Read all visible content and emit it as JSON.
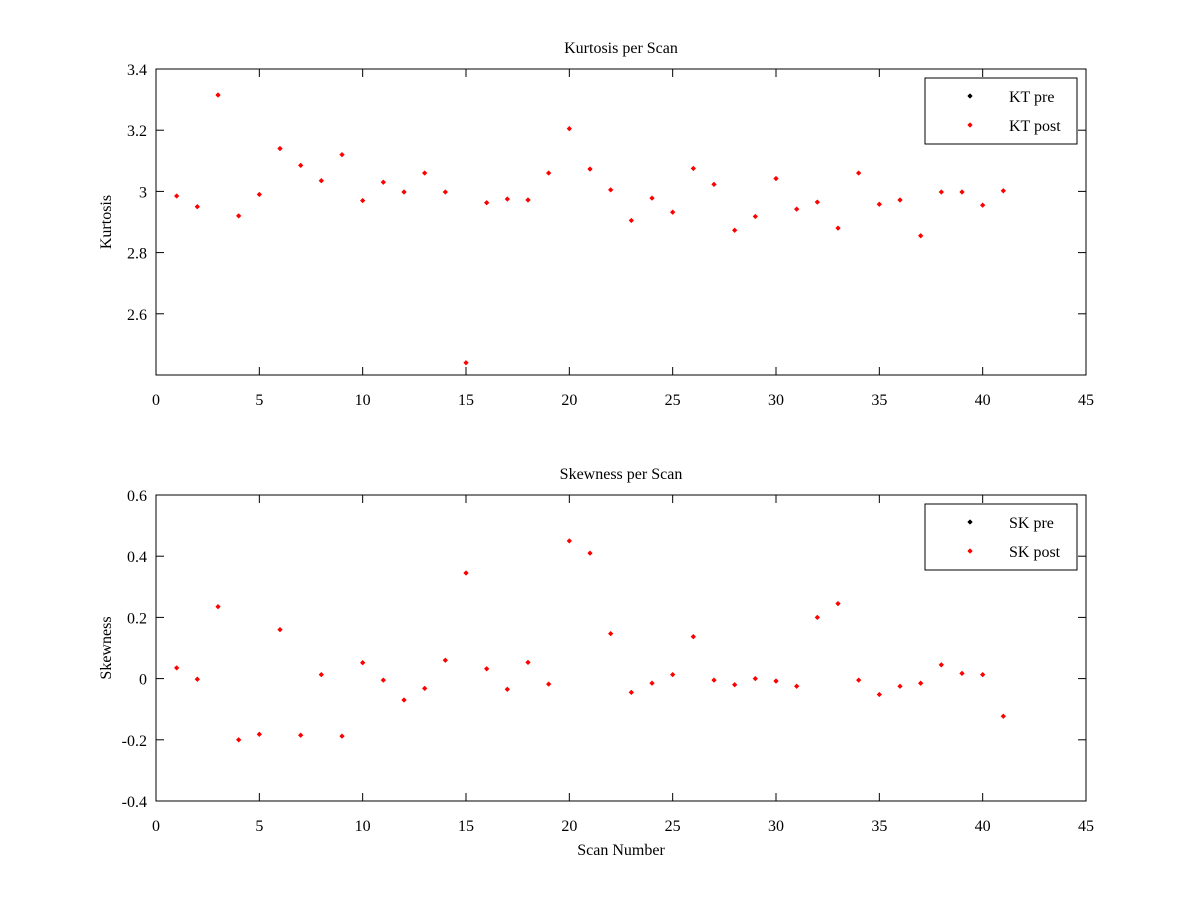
{
  "chart_data": [
    {
      "type": "scatter",
      "title": "Kurtosis per Scan",
      "xlabel": "",
      "ylabel": "Kurtosis",
      "xlim": [
        0,
        45
      ],
      "ylim": [
        2.4,
        3.4
      ],
      "xticks": [
        0,
        5,
        10,
        15,
        20,
        25,
        30,
        35,
        40,
        45
      ],
      "yticks": [
        2.6,
        2.8,
        3.0,
        3.2,
        3.4
      ],
      "xtick_labels": [
        "0",
        "5",
        "10",
        "15",
        "20",
        "25",
        "30",
        "35",
        "40",
        "45"
      ],
      "ytick_labels": [
        "2.6",
        "2.8",
        "3",
        "3.2",
        "3.4"
      ],
      "grid": false,
      "legend_position": "top-right",
      "series": [
        {
          "name": "KT pre",
          "color": "#000000",
          "x": [],
          "values": []
        },
        {
          "name": "KT post",
          "color": "#ff0000",
          "x": [
            1,
            2,
            3,
            4,
            5,
            6,
            7,
            8,
            9,
            10,
            11,
            12,
            13,
            14,
            15,
            16,
            17,
            18,
            19,
            20,
            21,
            22,
            23,
            24,
            25,
            26,
            27,
            28,
            29,
            30,
            31,
            32,
            33,
            34,
            35,
            36,
            37,
            38,
            39,
            40,
            41
          ],
          "values": [
            2.985,
            2.95,
            3.315,
            2.92,
            2.99,
            3.14,
            3.085,
            3.035,
            3.12,
            2.97,
            3.03,
            2.998,
            3.06,
            2.998,
            2.44,
            2.963,
            2.975,
            2.972,
            3.06,
            3.205,
            3.073,
            3.005,
            2.905,
            2.978,
            2.932,
            3.075,
            3.023,
            2.873,
            2.918,
            3.042,
            2.942,
            2.965,
            2.88,
            3.06,
            2.958,
            2.972,
            2.855,
            2.998,
            2.998,
            2.955,
            3.002
          ]
        }
      ]
    },
    {
      "type": "scatter",
      "title": "Skewness per Scan",
      "xlabel": "Scan Number",
      "ylabel": "Skewness",
      "xlim": [
        0,
        45
      ],
      "ylim": [
        -0.4,
        0.6
      ],
      "xticks": [
        0,
        5,
        10,
        15,
        20,
        25,
        30,
        35,
        40,
        45
      ],
      "yticks": [
        -0.4,
        -0.2,
        0,
        0.2,
        0.4,
        0.6
      ],
      "xtick_labels": [
        "0",
        "5",
        "10",
        "15",
        "20",
        "25",
        "30",
        "35",
        "40",
        "45"
      ],
      "ytick_labels": [
        "-0.4",
        "-0.2",
        "0",
        "0.2",
        "0.4",
        "0.6"
      ],
      "grid": false,
      "legend_position": "top-right",
      "series": [
        {
          "name": "SK pre",
          "color": "#000000",
          "x": [],
          "values": []
        },
        {
          "name": "SK post",
          "color": "#ff0000",
          "x": [
            1,
            2,
            3,
            4,
            5,
            6,
            7,
            8,
            9,
            10,
            11,
            12,
            13,
            14,
            15,
            16,
            17,
            18,
            19,
            20,
            21,
            22,
            23,
            24,
            25,
            26,
            27,
            28,
            29,
            30,
            31,
            32,
            33,
            34,
            35,
            36,
            37,
            38,
            39,
            40,
            41
          ],
          "values": [
            0.035,
            -0.002,
            0.235,
            -0.2,
            -0.182,
            0.16,
            -0.185,
            0.013,
            -0.188,
            0.052,
            -0.005,
            -0.07,
            -0.032,
            0.06,
            0.345,
            0.032,
            -0.035,
            0.053,
            -0.018,
            0.45,
            0.41,
            0.147,
            -0.045,
            -0.015,
            0.013,
            0.137,
            -0.005,
            -0.02,
            0.0,
            -0.008,
            -0.025,
            0.2,
            0.245,
            -0.005,
            -0.052,
            -0.025,
            -0.015,
            0.045,
            0.017,
            0.013,
            -0.123
          ]
        }
      ]
    }
  ]
}
